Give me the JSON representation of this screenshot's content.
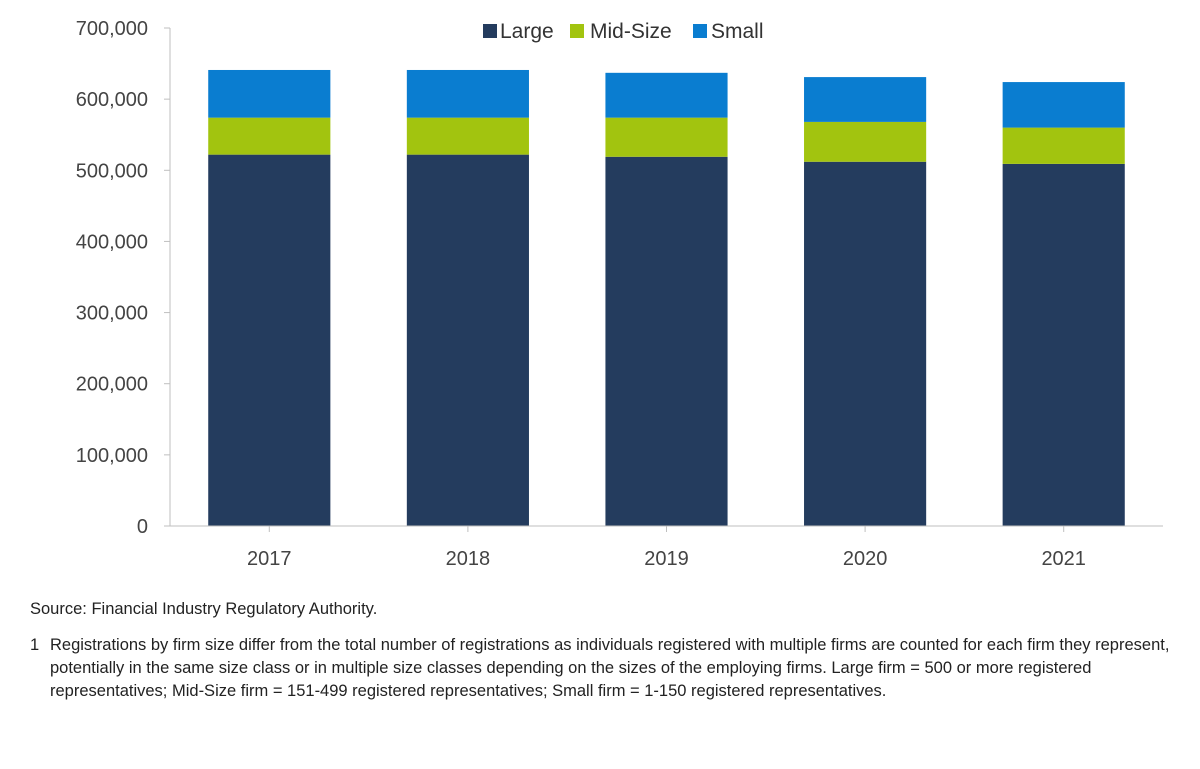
{
  "chart_data": {
    "type": "bar",
    "stacked": true,
    "categories": [
      "2017",
      "2018",
      "2019",
      "2020",
      "2021"
    ],
    "series": [
      {
        "name": "Large",
        "color": "#243c5e",
        "values": [
          522000,
          522000,
          519000,
          512000,
          509000
        ]
      },
      {
        "name": "Mid-Size",
        "color": "#a2c40f",
        "values": [
          52000,
          52000,
          55000,
          56000,
          51000
        ]
      },
      {
        "name": "Small",
        "color": "#0a7dd0",
        "values": [
          67000,
          67000,
          63000,
          63000,
          64000
        ]
      }
    ],
    "yticks": [
      "0",
      "100,000",
      "200,000",
      "300,000",
      "400,000",
      "500,000",
      "600,000",
      "700,000"
    ],
    "ylim": [
      0,
      700000
    ],
    "legend_position": "top-center",
    "grid": false
  },
  "notes": {
    "source": "Source: Financial Industry Regulatory Authority.",
    "footnote_number": "1",
    "footnote_text": "Registrations by firm size differ from the total number of registrations as individuals registered with multiple firms are counted for each firm they represent, potentially in the same size class or in multiple size classes depending on the sizes of the employing firms. Large firm = 500 or more registered representatives; Mid-Size firm = 151-499 registered representatives; Small firm = 1-150 registered representatives."
  }
}
